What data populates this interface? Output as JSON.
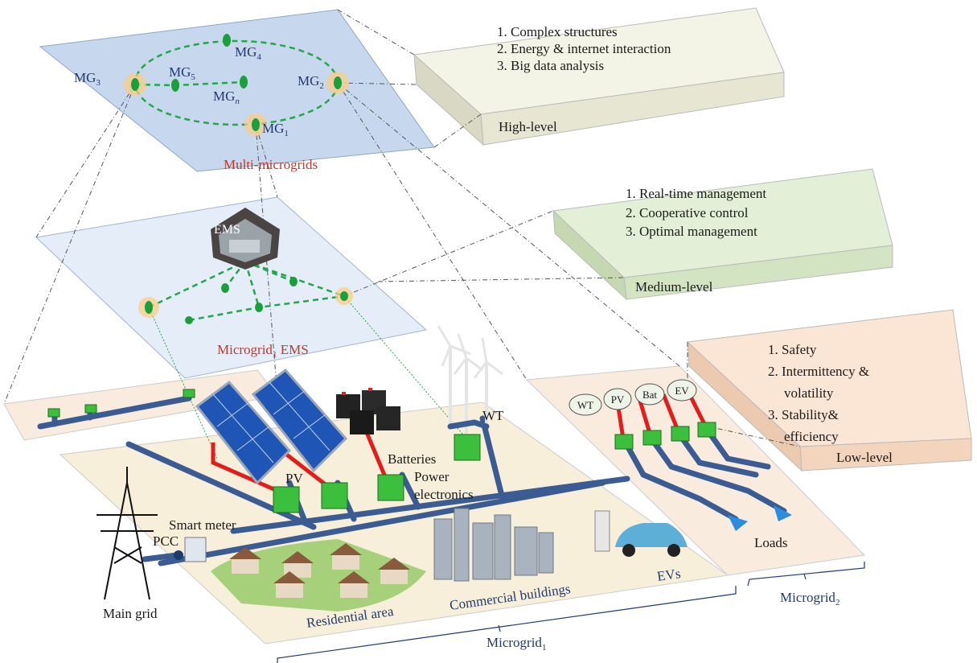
{
  "multi_microgrids": {
    "label": "Multi-microgrids",
    "nodes": [
      {
        "base": "MG",
        "sub": "1"
      },
      {
        "base": "MG",
        "sub": "2"
      },
      {
        "base": "MG",
        "sub": "3"
      },
      {
        "base": "MG",
        "sub": "4"
      },
      {
        "base": "MG",
        "sub": "5"
      },
      {
        "base": "MG",
        "sub": "n"
      }
    ]
  },
  "microgrid_ems": {
    "building": "EMS",
    "label": {
      "base": "Microgrid",
      "sub": "1",
      "rest": " EMS"
    }
  },
  "levels": [
    {
      "title": "High-level",
      "items": [
        "1. Complex structures",
        "2. Energy & internet interaction",
        "3. Big data analysis"
      ]
    },
    {
      "title": "Medium-level",
      "items": [
        "1. Real-time management",
        "2. Cooperative control",
        "3. Optimal management"
      ]
    },
    {
      "title": "Low-level",
      "items": [
        "1. Safety",
        "2. Intermittency &",
        "volatility",
        "3. Stability&",
        "efficiency"
      ]
    }
  ],
  "microgrid1": {
    "labels": {
      "wt": "WT",
      "batteries": "Batteries",
      "power_electronics": [
        "Power",
        "electronics"
      ],
      "pv": "PV",
      "smart_meter": "Smart meter",
      "pcc": "PCC",
      "main_grid": "Main grid",
      "residential": "Residential area",
      "commercial": "Commercial buildings",
      "evs": "EVs"
    },
    "bracket": {
      "base": "Microgrid",
      "sub": "1"
    }
  },
  "microgrid2": {
    "sources": [
      "WT",
      "PV",
      "Bat",
      "EV"
    ],
    "loads": "Loads",
    "bracket": {
      "base": "Microgrid",
      "sub": "2"
    }
  }
}
